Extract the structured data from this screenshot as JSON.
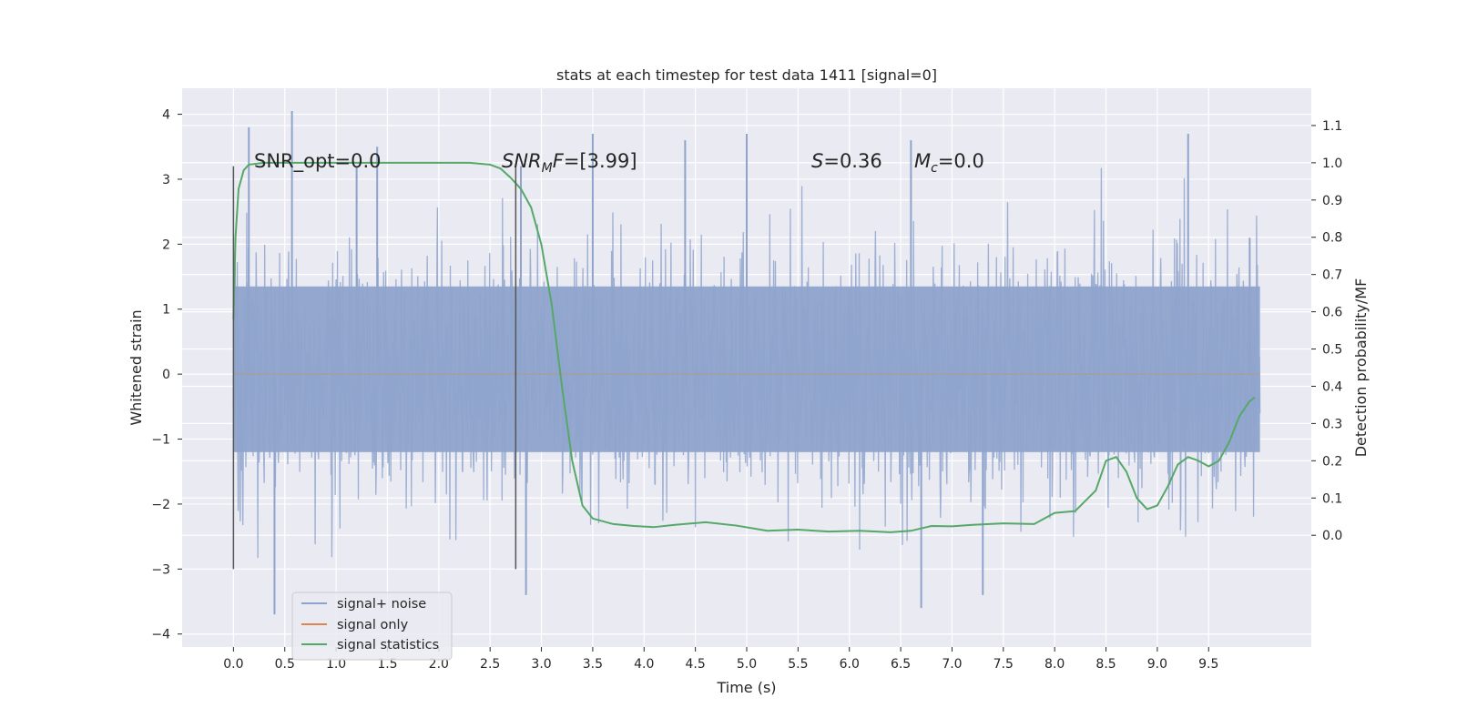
{
  "chart_data": {
    "type": "line",
    "title": "stats at each timestep for test data 1411 [signal=0]",
    "xlabel": "Time (s)",
    "ylabel": "Whitened strain",
    "y2label": "Detection probability/MF",
    "xlim": [
      -0.5,
      10.5
    ],
    "ylim": [
      -4.2,
      4.4
    ],
    "y2lim": [
      -0.3,
      1.2
    ],
    "x_ticks": [
      "0.0",
      "0.5",
      "1.0",
      "1.5",
      "2.0",
      "2.5",
      "3.0",
      "3.5",
      "4.0",
      "4.5",
      "5.0",
      "5.5",
      "6.0",
      "6.5",
      "7.0",
      "7.5",
      "8.0",
      "8.5",
      "9.0",
      "9.5"
    ],
    "y_ticks": [
      "−4",
      "−3",
      "−2",
      "−1",
      "0",
      "1",
      "2",
      "3",
      "4"
    ],
    "y2_ticks": [
      "0.0",
      "0.1",
      "0.2",
      "0.3",
      "0.4",
      "0.5",
      "0.6",
      "0.7",
      "0.8",
      "0.9",
      "1.0",
      "1.1"
    ],
    "grid": true,
    "legend_position": "lower-left",
    "annotations": {
      "snr_opt": "SNR_opt=0.0",
      "snr_mf_name": "SNR",
      "snr_mf_sub": "M",
      "snr_mf_tail": "F",
      "snr_mf_value": "=[3.99]",
      "s_name": "S",
      "s_value": "=0.36",
      "mc_name": "M",
      "mc_sub": "c",
      "mc_value": "=0.0"
    },
    "vertical_markers": [
      {
        "x": 0.0,
        "ymin": -3.0,
        "ymax": 3.2
      },
      {
        "x": 2.75,
        "ymin": -3.0,
        "ymax": 3.2
      }
    ],
    "series": [
      {
        "name": "signal+ noise",
        "color": "#8fa4cc",
        "axis": "left",
        "kind": "noise",
        "x_range": [
          0.0,
          10.0
        ],
        "core_range": [
          -1.2,
          1.35
        ],
        "peak_values": [
          {
            "x": 0.15,
            "y": 3.8
          },
          {
            "x": 0.57,
            "y": 4.05
          },
          {
            "x": 0.4,
            "y": -3.7
          },
          {
            "x": 1.2,
            "y": 3.2
          },
          {
            "x": 1.4,
            "y": 3.5
          },
          {
            "x": 2.8,
            "y": 3.2
          },
          {
            "x": 2.85,
            "y": -3.4
          },
          {
            "x": 3.5,
            "y": 3.7
          },
          {
            "x": 4.4,
            "y": 3.6
          },
          {
            "x": 5.0,
            "y": 3.7
          },
          {
            "x": 6.6,
            "y": 3.6
          },
          {
            "x": 6.7,
            "y": -3.6
          },
          {
            "x": 7.3,
            "y": -3.4
          },
          {
            "x": 9.3,
            "y": 3.7
          },
          {
            "x": 9.9,
            "y": 2.1
          }
        ]
      },
      {
        "name": "signal only",
        "color": "#dd8452",
        "axis": "left",
        "x": [
          0.0,
          10.0
        ],
        "y": [
          0.0,
          0.0
        ]
      },
      {
        "name": "signal statistics",
        "color": "#55a868",
        "axis": "right",
        "x": [
          0.0,
          0.02,
          0.05,
          0.1,
          0.15,
          0.3,
          0.5,
          1.0,
          1.5,
          2.0,
          2.3,
          2.5,
          2.6,
          2.7,
          2.8,
          2.9,
          3.0,
          3.1,
          3.2,
          3.3,
          3.4,
          3.5,
          3.7,
          3.9,
          4.1,
          4.3,
          4.6,
          4.9,
          5.2,
          5.5,
          5.8,
          6.1,
          6.4,
          6.6,
          6.8,
          7.0,
          7.2,
          7.5,
          7.8,
          8.0,
          8.2,
          8.4,
          8.5,
          8.6,
          8.7,
          8.8,
          8.9,
          9.0,
          9.1,
          9.2,
          9.3,
          9.4,
          9.5,
          9.6,
          9.7,
          9.8,
          9.9,
          9.95
        ],
        "y": [
          0.58,
          0.8,
          0.93,
          0.98,
          0.995,
          1.0,
          1.0,
          1.0,
          1.0,
          1.0,
          1.0,
          0.995,
          0.985,
          0.96,
          0.93,
          0.88,
          0.78,
          0.62,
          0.4,
          0.2,
          0.08,
          0.045,
          0.03,
          0.025,
          0.022,
          0.028,
          0.035,
          0.026,
          0.012,
          0.015,
          0.01,
          0.012,
          0.008,
          0.012,
          0.025,
          0.024,
          0.028,
          0.032,
          0.03,
          0.06,
          0.065,
          0.12,
          0.2,
          0.21,
          0.17,
          0.1,
          0.07,
          0.08,
          0.13,
          0.19,
          0.21,
          0.2,
          0.185,
          0.2,
          0.25,
          0.32,
          0.36,
          0.37
        ]
      }
    ]
  }
}
